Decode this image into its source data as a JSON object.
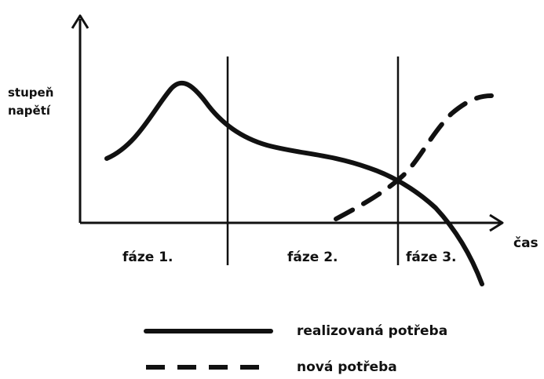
{
  "y_axis_label": [
    "stupeň",
    "napětí"
  ],
  "x_axis_label": "čas",
  "phases": [
    "fáze 1.",
    "fáze 2.",
    "fáze 3."
  ],
  "legend": {
    "solid": "realizovaná potřeba",
    "dashed": "nová potřeba"
  },
  "colors": {
    "ink": "#111111",
    "background": "#ffffff"
  }
}
